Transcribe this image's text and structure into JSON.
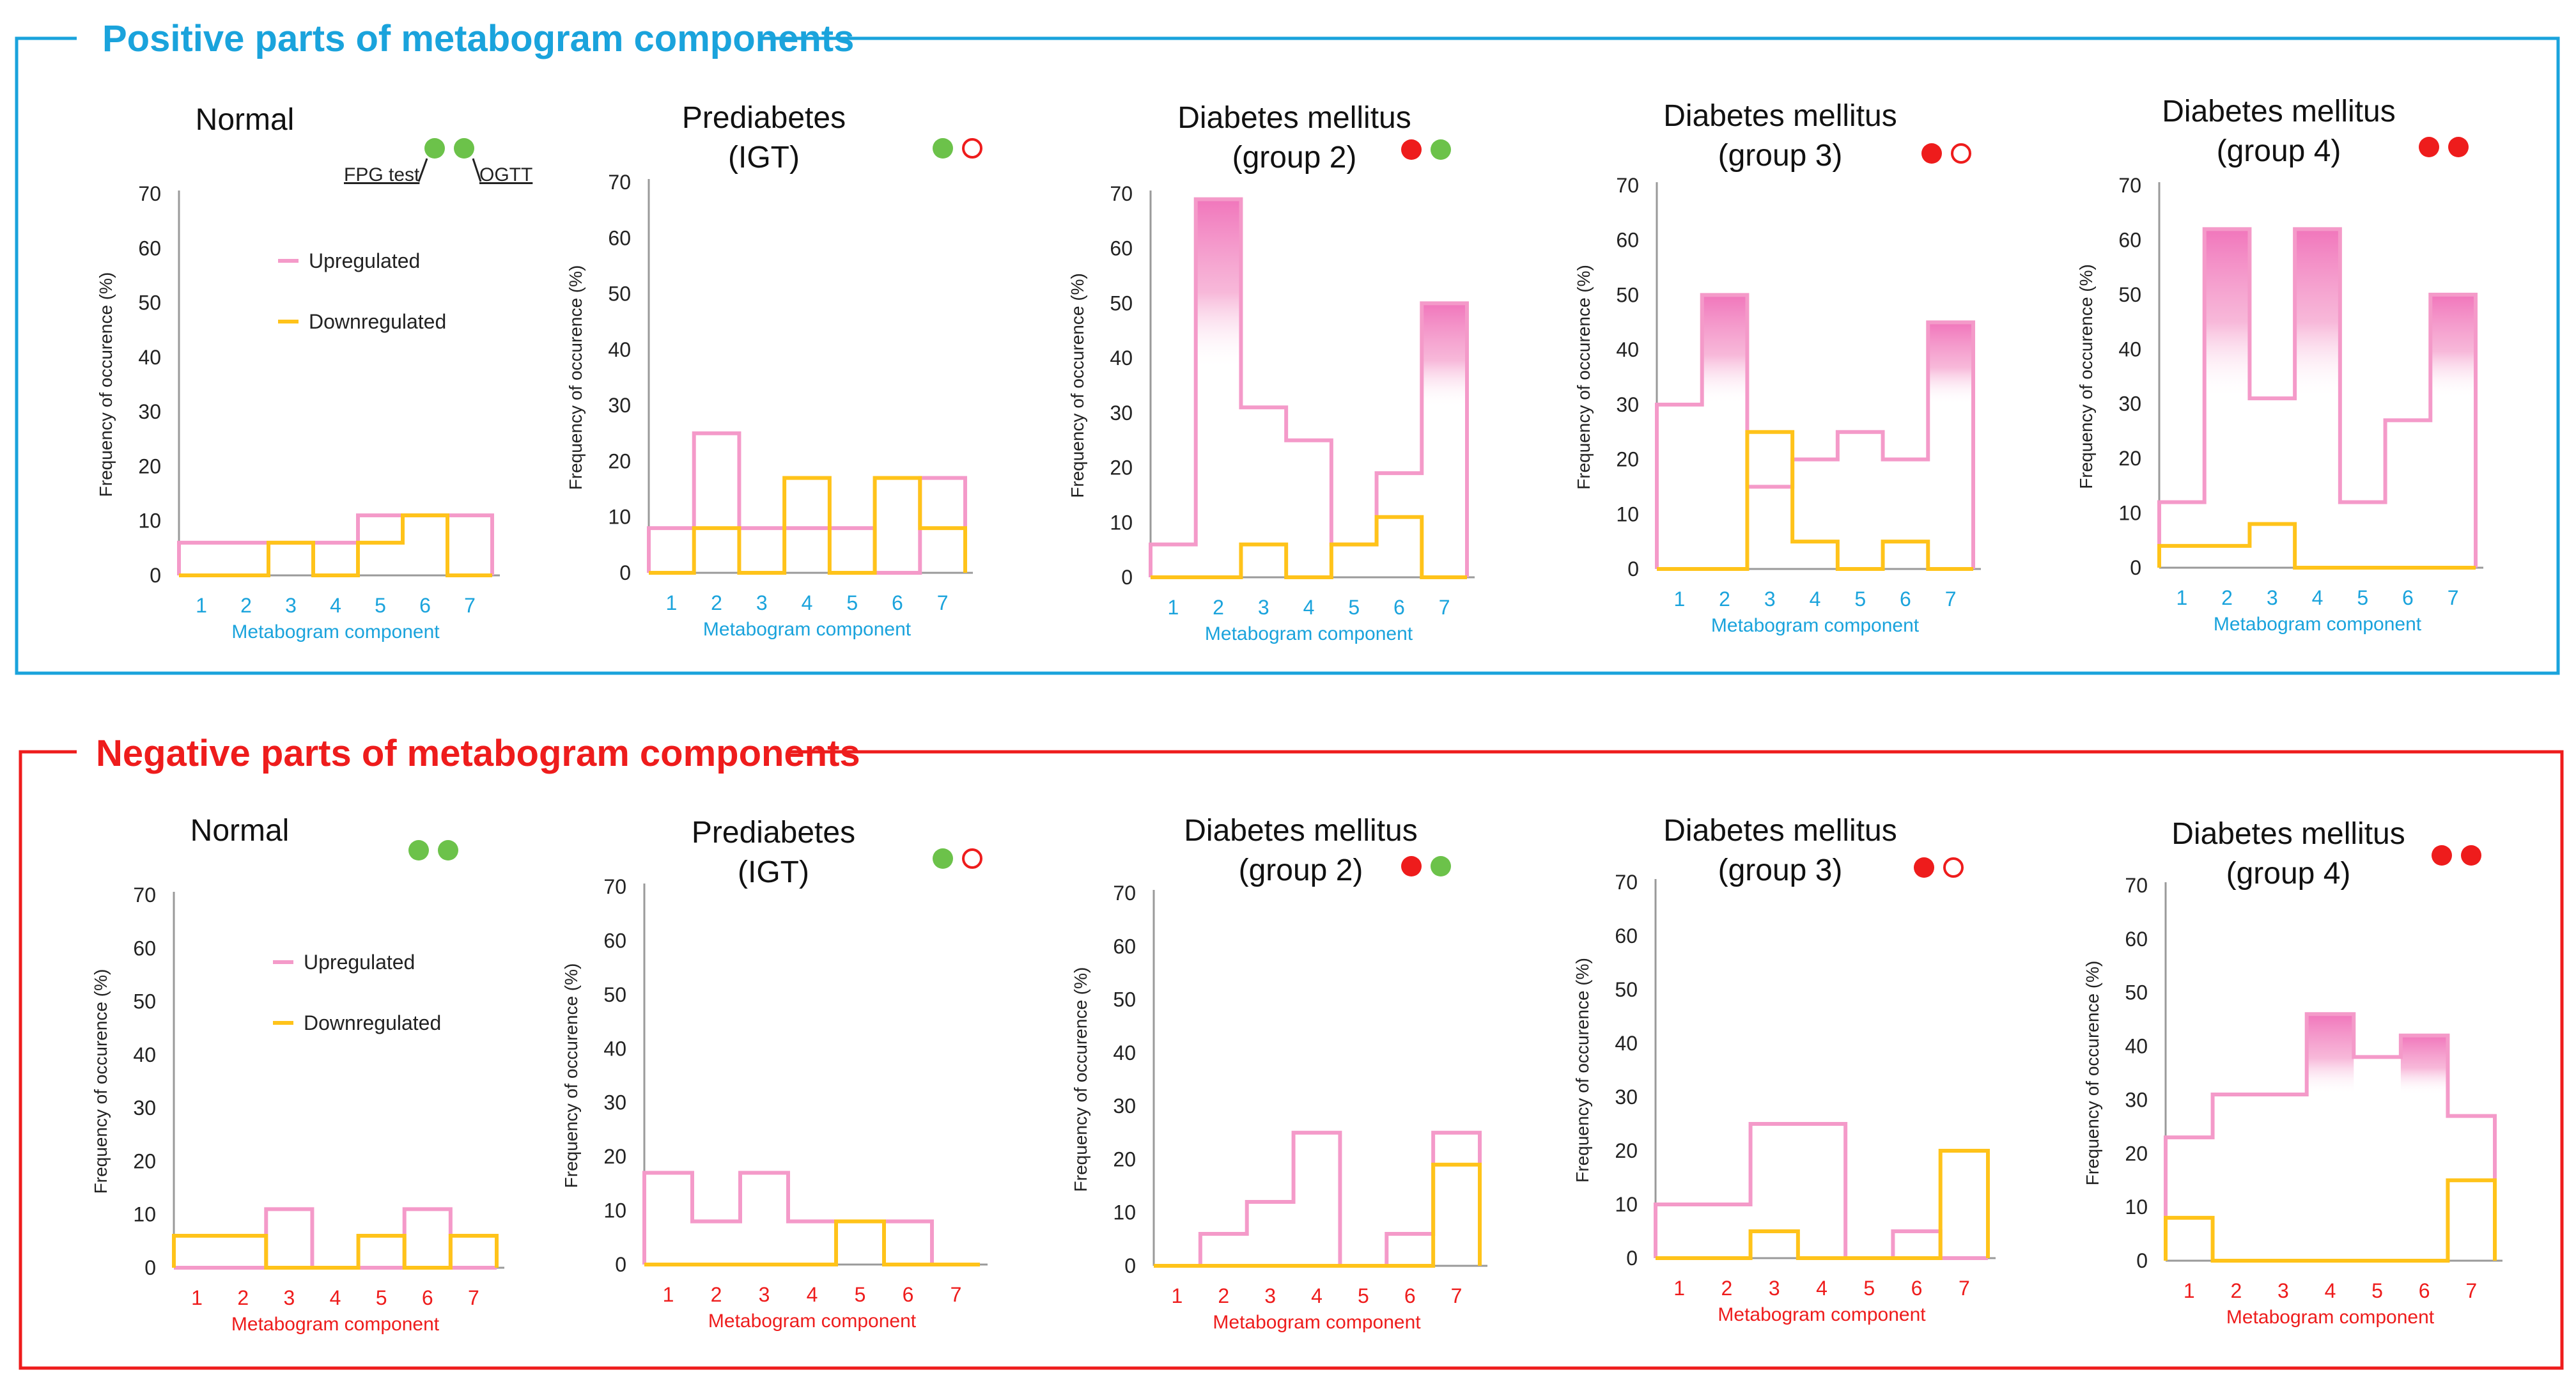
{
  "colors": {
    "positive": "#1aa3dc",
    "negative": "#ee1c1c",
    "upregulated": "#f49ac9",
    "downregulated": "#ffc31a",
    "green_dot": "#6cc24a",
    "red_dot": "#ee1c1c",
    "gradient_pink": "#f06fb8",
    "axis": "#9a9a9a"
  },
  "annotations": {
    "fpg": "FPG test",
    "ogtt": "OGTT"
  },
  "chart_data": [
    {
      "type": "step",
      "section": "Positive parts of metabogram components",
      "title": [
        "Normal"
      ],
      "indicators": [
        "green",
        "green"
      ],
      "legend": [
        "Upregulated",
        "Downregulated"
      ],
      "xlabel": "Metabogram component",
      "ylabel": "Frequency of occurence (%)",
      "categories": [
        1,
        2,
        3,
        4,
        5,
        6,
        7
      ],
      "ylim": [
        0,
        70
      ],
      "yticks": [
        0,
        10,
        20,
        30,
        40,
        50,
        60,
        70
      ],
      "series": [
        {
          "name": "Upregulated",
          "values": [
            6,
            6,
            6,
            6,
            11,
            11,
            11
          ],
          "gradient": []
        },
        {
          "name": "Downregulated",
          "values": [
            0,
            0,
            6,
            0,
            6,
            11,
            0
          ]
        }
      ]
    },
    {
      "type": "step",
      "section": "Positive parts of metabogram components",
      "title": [
        "Prediabetes",
        "(IGT)"
      ],
      "indicators": [
        "green",
        "red-open"
      ],
      "xlabel": "Metabogram component",
      "ylabel": "Frequency of occurence (%)",
      "categories": [
        1,
        2,
        3,
        4,
        5,
        6,
        7
      ],
      "ylim": [
        0,
        70
      ],
      "yticks": [
        0,
        10,
        20,
        30,
        40,
        50,
        60,
        70
      ],
      "series": [
        {
          "name": "Upregulated",
          "values": [
            8,
            25,
            8,
            8,
            8,
            0,
            17
          ],
          "gradient": []
        },
        {
          "name": "Downregulated",
          "values": [
            0,
            8,
            0,
            17,
            0,
            17,
            8
          ]
        }
      ]
    },
    {
      "type": "step",
      "section": "Positive parts of metabogram components",
      "title": [
        "Diabetes mellitus",
        "(group 2)"
      ],
      "indicators": [
        "red",
        "green"
      ],
      "xlabel": "Metabogram component",
      "ylabel": "Frequency of occurence (%)",
      "categories": [
        1,
        2,
        3,
        4,
        5,
        6,
        7
      ],
      "ylim": [
        0,
        70
      ],
      "yticks": [
        0,
        10,
        20,
        30,
        40,
        50,
        60,
        70
      ],
      "series": [
        {
          "name": "Upregulated",
          "values": [
            6,
            69,
            31,
            25,
            6,
            19,
            50
          ],
          "gradient": [
            [
              2,
              38
            ],
            [
              7,
              31
            ]
          ]
        },
        {
          "name": "Downregulated",
          "values": [
            0,
            0,
            6,
            0,
            6,
            11,
            0
          ]
        }
      ]
    },
    {
      "type": "step",
      "section": "Positive parts of metabogram components",
      "title": [
        "Diabetes mellitus",
        "(group 3)"
      ],
      "indicators": [
        "red",
        "red-open"
      ],
      "xlabel": "Metabogram component",
      "ylabel": "Frequency of occurence (%)",
      "categories": [
        1,
        2,
        3,
        4,
        5,
        6,
        7
      ],
      "ylim": [
        0,
        70
      ],
      "yticks": [
        0,
        10,
        20,
        30,
        40,
        50,
        60,
        70
      ],
      "series": [
        {
          "name": "Upregulated",
          "values": [
            30,
            50,
            15,
            20,
            25,
            20,
            45
          ],
          "gradient": [
            [
              2,
              30
            ],
            [
              7,
              30
            ]
          ]
        },
        {
          "name": "Downregulated",
          "values": [
            0,
            0,
            25,
            5,
            0,
            5,
            0
          ]
        }
      ]
    },
    {
      "type": "step",
      "section": "Positive parts of metabogram components",
      "title": [
        "Diabetes mellitus",
        "(group 4)"
      ],
      "indicators": [
        "red",
        "red"
      ],
      "xlabel": "Metabogram component",
      "ylabel": "Frequency of occurence (%)",
      "categories": [
        1,
        2,
        3,
        4,
        5,
        6,
        7
      ],
      "ylim": [
        0,
        70
      ],
      "yticks": [
        0,
        10,
        20,
        30,
        40,
        50,
        60,
        70
      ],
      "series": [
        {
          "name": "Upregulated",
          "values": [
            12,
            62,
            31,
            62,
            12,
            27,
            50
          ],
          "gradient": [
            [
              2,
              31
            ],
            [
              4,
              31
            ],
            [
              7,
              31
            ]
          ]
        },
        {
          "name": "Downregulated",
          "values": [
            4,
            4,
            8,
            0,
            0,
            0,
            0
          ]
        }
      ]
    },
    {
      "type": "step",
      "section": "Negative parts of metabogram components",
      "title": [
        "Normal"
      ],
      "indicators": [
        "green",
        "green"
      ],
      "legend": [
        "Upregulated",
        "Downregulated"
      ],
      "xlabel": "Metabogram component",
      "ylabel": "Frequency of occurence (%)",
      "categories": [
        1,
        2,
        3,
        4,
        5,
        6,
        7
      ],
      "ylim": [
        0,
        70
      ],
      "yticks": [
        0,
        10,
        20,
        30,
        40,
        50,
        60,
        70
      ],
      "series": [
        {
          "name": "Upregulated",
          "values": [
            0,
            0,
            11,
            0,
            0,
            11,
            0
          ],
          "gradient": []
        },
        {
          "name": "Downregulated",
          "values": [
            6,
            6,
            0,
            0,
            6,
            0,
            6
          ]
        }
      ]
    },
    {
      "type": "step",
      "section": "Negative parts of metabogram components",
      "title": [
        "Prediabetes",
        "(IGT)"
      ],
      "indicators": [
        "green",
        "red-open"
      ],
      "xlabel": "Metabogram component",
      "ylabel": "Frequency of occurence (%)",
      "categories": [
        1,
        2,
        3,
        4,
        5,
        6,
        7
      ],
      "ylim": [
        0,
        70
      ],
      "yticks": [
        0,
        10,
        20,
        30,
        40,
        50,
        60,
        70
      ],
      "series": [
        {
          "name": "Upregulated",
          "values": [
            17,
            8,
            17,
            8,
            8,
            8,
            0
          ],
          "gradient": []
        },
        {
          "name": "Downregulated",
          "values": [
            0,
            0,
            0,
            0,
            8,
            0,
            0
          ]
        }
      ]
    },
    {
      "type": "step",
      "section": "Negative parts of metabogram components",
      "title": [
        "Diabetes mellitus",
        "(group 2)"
      ],
      "indicators": [
        "red",
        "green"
      ],
      "xlabel": "Metabogram component",
      "ylabel": "Frequency of occurence (%)",
      "categories": [
        1,
        2,
        3,
        4,
        5,
        6,
        7
      ],
      "ylim": [
        0,
        70
      ],
      "yticks": [
        0,
        10,
        20,
        30,
        40,
        50,
        60,
        70
      ],
      "series": [
        {
          "name": "Upregulated",
          "values": [
            0,
            6,
            12,
            25,
            0,
            6,
            25
          ],
          "gradient": []
        },
        {
          "name": "Downregulated",
          "values": [
            0,
            0,
            0,
            0,
            0,
            0,
            19
          ]
        }
      ]
    },
    {
      "type": "step",
      "section": "Negative parts of metabogram components",
      "title": [
        "Diabetes mellitus",
        "(group 3)"
      ],
      "indicators": [
        "red",
        "red-open"
      ],
      "xlabel": "Metabogram component",
      "ylabel": "Frequency of occurence (%)",
      "categories": [
        1,
        2,
        3,
        4,
        5,
        6,
        7
      ],
      "ylim": [
        0,
        70
      ],
      "yticks": [
        0,
        10,
        20,
        30,
        40,
        50,
        60,
        70
      ],
      "series": [
        {
          "name": "Upregulated",
          "values": [
            10,
            10,
            25,
            25,
            0,
            5,
            0
          ],
          "gradient": []
        },
        {
          "name": "Downregulated",
          "values": [
            0,
            0,
            5,
            0,
            0,
            0,
            20
          ]
        }
      ]
    },
    {
      "type": "step",
      "section": "Negative parts of metabogram components",
      "title": [
        "Diabetes mellitus",
        "(group 4)"
      ],
      "indicators": [
        "red",
        "red"
      ],
      "xlabel": "Metabogram component",
      "ylabel": "Frequency of occurence (%)",
      "categories": [
        1,
        2,
        3,
        4,
        5,
        6,
        7
      ],
      "ylim": [
        0,
        70
      ],
      "yticks": [
        0,
        10,
        20,
        30,
        40,
        50,
        60,
        70
      ],
      "series": [
        {
          "name": "Upregulated",
          "values": [
            23,
            31,
            31,
            46,
            38,
            42,
            27
          ],
          "gradient": [
            [
              4,
              31
            ],
            [
              6,
              31
            ]
          ]
        },
        {
          "name": "Downregulated",
          "values": [
            8,
            0,
            0,
            0,
            0,
            0,
            15
          ]
        }
      ]
    }
  ]
}
